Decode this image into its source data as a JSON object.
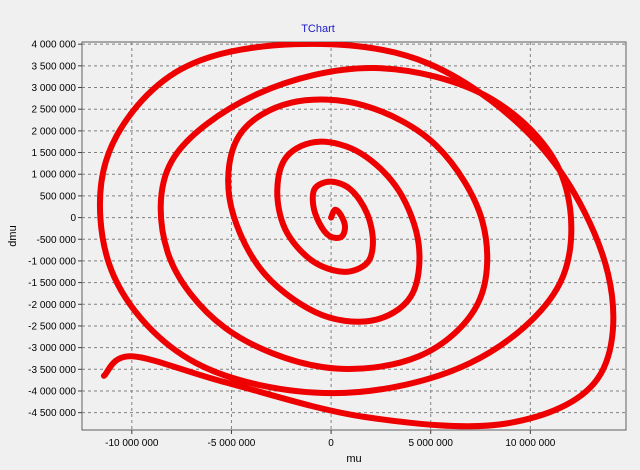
{
  "chart_data": {
    "type": "line",
    "title": "TChart",
    "xlabel": "mu",
    "ylabel": "dmu",
    "xlim": [
      -12500000,
      14800000
    ],
    "ylim": [
      -4900000,
      4050000
    ],
    "grid": true,
    "legend": "none",
    "series_color": "#ee0000",
    "background_color": "#f0f0f0",
    "x_ticks": [
      {
        "value": -10000000,
        "label": "-10 000 000"
      },
      {
        "value": -5000000,
        "label": "-5 000 000"
      },
      {
        "value": 0,
        "label": "0"
      },
      {
        "value": 5000000,
        "label": "5 000 000"
      },
      {
        "value": 10000000,
        "label": "10 000 000"
      }
    ],
    "y_ticks": [
      {
        "value": 4000000,
        "label": "4 000 000"
      },
      {
        "value": 3500000,
        "label": "3 500 000"
      },
      {
        "value": 3000000,
        "label": "3 000 000"
      },
      {
        "value": 2500000,
        "label": "2 500 000"
      },
      {
        "value": 2000000,
        "label": "2 000 000"
      },
      {
        "value": 1500000,
        "label": "1 500 000"
      },
      {
        "value": 1000000,
        "label": "1 000 000"
      },
      {
        "value": 500000,
        "label": "500 000"
      },
      {
        "value": 0,
        "label": "0"
      },
      {
        "value": -500000,
        "label": "-500 000"
      },
      {
        "value": -1000000,
        "label": "-1 000 000"
      },
      {
        "value": -1500000,
        "label": "-1 500 000"
      },
      {
        "value": -2000000,
        "label": "-2 000 000"
      },
      {
        "value": -2500000,
        "label": "-2 500 000"
      },
      {
        "value": -3000000,
        "label": "-3 000 000"
      },
      {
        "value": -3500000,
        "label": "-3 500 000"
      },
      {
        "value": -4000000,
        "label": "-4 000 000"
      },
      {
        "value": -4500000,
        "label": "-4 500 000"
      }
    ],
    "series": [
      {
        "x": [
          0,
          200000,
          500000,
          700000,
          500000,
          -100000,
          -600000,
          -900000,
          -800000,
          0,
          1000000,
          1800000,
          2100000,
          1800000,
          600000,
          -1000000,
          -2300000,
          -2700000,
          -2200000,
          -600000,
          1500000,
          3400000,
          4400000,
          4000000,
          2000000,
          -800000,
          -3600000,
          -5100000,
          -4600000,
          -2000000,
          1700000,
          5300000,
          7600000,
          7400000,
          4400000,
          -400000,
          -5300000,
          -8200000,
          -8000000,
          -3700000,
          2200000,
          8000000,
          11600000,
          11500000,
          7000000,
          100000,
          -6800000,
          -10900000,
          -11300000,
          -7800000,
          -1800000,
          4900000,
          10700000,
          13900000,
          13400000,
          8800000,
          1700000,
          -5300000,
          -10000000,
          -11400000
        ],
        "y": [
          0,
          180000,
          50000,
          -220000,
          -450000,
          -420000,
          -120000,
          300000,
          680000,
          830000,
          640000,
          100000,
          -550000,
          -1050000,
          -1250000,
          -980000,
          -270000,
          640000,
          1420000,
          1750000,
          1480000,
          620000,
          -630000,
          -1820000,
          -2380000,
          -2180000,
          -1150000,
          450000,
          1900000,
          2650000,
          2580000,
          1650000,
          -100000,
          -1950000,
          -3200000,
          -3450000,
          -2550000,
          -800000,
          1300000,
          2850000,
          3450000,
          2750000,
          950000,
          -1500000,
          -3350000,
          -4050000,
          -3350000,
          -1350000,
          1300000,
          3350000,
          4000000,
          3550000,
          1550000,
          -1300000,
          -3700000,
          -4750000,
          -4600000,
          -3800000,
          -3200000,
          -3650000
        ]
      }
    ]
  }
}
